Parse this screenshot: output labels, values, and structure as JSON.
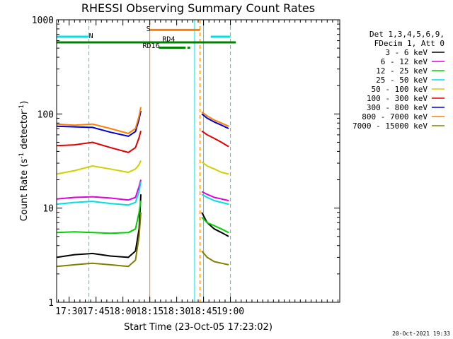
{
  "chart_data": {
    "type": "line",
    "title": "RHESSI Observing Summary Count Rates",
    "xlabel": "Start Time (23-Oct-05 17:23:02)",
    "ylabel_prefix": "Count Rate (s",
    "ylabel_sup1": "-1",
    "ylabel_mid": " detector",
    "ylabel_sup2": "-1",
    "ylabel_suffix": ")",
    "y_scale": "log",
    "ylim": [
      1,
      1000
    ],
    "xlim_minutes": [
      0,
      158
    ],
    "x_ticks": [
      {
        "label": "17:30",
        "minutes": 7
      },
      {
        "label": "17:45",
        "minutes": 22
      },
      {
        "label": "18:00",
        "minutes": 37
      },
      {
        "label": "18:15",
        "minutes": 52
      },
      {
        "label": "18:30",
        "minutes": 67
      },
      {
        "label": "18:45",
        "minutes": 82
      },
      {
        "label": "19:00",
        "minutes": 97
      }
    ],
    "y_ticks": [
      {
        "label": "1",
        "value": 1
      },
      {
        "label": "10",
        "value": 10
      },
      {
        "label": "100",
        "value": 100
      },
      {
        "label": "1000",
        "value": 1000
      }
    ],
    "legend_header": [
      "Det 1,3,4,5,6,9,",
      "FDecim 1, Att 0"
    ],
    "legend_placement": "right",
    "series": [
      {
        "name": "3 - 6 keV",
        "color": "#000000",
        "segments": [
          [
            [
              0,
              3.0
            ],
            [
              10,
              3.2
            ],
            [
              20,
              3.3
            ],
            [
              30,
              3.1
            ],
            [
              40,
              3.0
            ],
            [
              44,
              3.5
            ],
            [
              46,
              6
            ],
            [
              47,
              14
            ]
          ],
          [
            [
              81,
              9
            ],
            [
              84,
              7
            ],
            [
              88,
              6
            ],
            [
              92,
              5.5
            ],
            [
              96,
              5
            ]
          ]
        ]
      },
      {
        "name": "6 - 12 keV",
        "color": "#e000e0",
        "segments": [
          [
            [
              0,
              12.5
            ],
            [
              10,
              13
            ],
            [
              20,
              13.2
            ],
            [
              30,
              12.8
            ],
            [
              40,
              12.2
            ],
            [
              44,
              13
            ],
            [
              46,
              17
            ],
            [
              47,
              20
            ]
          ],
          [
            [
              81,
              15
            ],
            [
              84,
              14
            ],
            [
              88,
              13
            ],
            [
              92,
              12.5
            ],
            [
              96,
              12
            ]
          ]
        ]
      },
      {
        "name": "12 - 25 keV",
        "color": "#00d000",
        "segments": [
          [
            [
              0,
              5.5
            ],
            [
              10,
              5.6
            ],
            [
              20,
              5.5
            ],
            [
              30,
              5.4
            ],
            [
              40,
              5.5
            ],
            [
              44,
              6
            ],
            [
              46,
              9
            ],
            [
              47,
              12
            ]
          ],
          [
            [
              81,
              8
            ],
            [
              84,
              7
            ],
            [
              88,
              6.5
            ],
            [
              92,
              6
            ],
            [
              96,
              5.5
            ]
          ]
        ]
      },
      {
        "name": "25 - 50 keV",
        "color": "#00e0e0",
        "segments": [
          [
            [
              0,
              11
            ],
            [
              10,
              11.5
            ],
            [
              20,
              11.8
            ],
            [
              30,
              11.2
            ],
            [
              40,
              10.8
            ],
            [
              44,
              11.5
            ],
            [
              46,
              15
            ],
            [
              47,
              19
            ]
          ],
          [
            [
              81,
              14
            ],
            [
              84,
              13
            ],
            [
              88,
              12
            ],
            [
              92,
              11.5
            ],
            [
              96,
              11
            ]
          ]
        ]
      },
      {
        "name": "50 - 100 keV",
        "color": "#d0d000",
        "segments": [
          [
            [
              0,
              23
            ],
            [
              10,
              25
            ],
            [
              20,
              28
            ],
            [
              30,
              26
            ],
            [
              40,
              24
            ],
            [
              44,
              26
            ],
            [
              46,
              29
            ],
            [
              47,
              32
            ]
          ],
          [
            [
              81,
              31
            ],
            [
              84,
              28
            ],
            [
              88,
              26
            ],
            [
              92,
              24
            ],
            [
              96,
              23
            ]
          ]
        ]
      },
      {
        "name": "100 - 300 keV",
        "color": "#e00000",
        "segments": [
          [
            [
              0,
              46
            ],
            [
              10,
              47
            ],
            [
              20,
              50
            ],
            [
              30,
              44
            ],
            [
              40,
              39
            ],
            [
              44,
              44
            ],
            [
              46,
              56
            ],
            [
              47,
              66
            ]
          ],
          [
            [
              81,
              66
            ],
            [
              84,
              60
            ],
            [
              88,
              55
            ],
            [
              92,
              50
            ],
            [
              96,
              45
            ]
          ]
        ]
      },
      {
        "name": "300 - 800 keV",
        "color": "#0000d0",
        "segments": [
          [
            [
              0,
              74
            ],
            [
              10,
              73
            ],
            [
              20,
              72
            ],
            [
              30,
              64
            ],
            [
              40,
              58
            ],
            [
              44,
              65
            ],
            [
              46,
              88
            ],
            [
              47,
              108
            ]
          ],
          [
            [
              81,
              100
            ],
            [
              84,
              90
            ],
            [
              88,
              82
            ],
            [
              92,
              76
            ],
            [
              96,
              70
            ]
          ]
        ]
      },
      {
        "name": "800 - 7000 keV",
        "color": "#ff8000",
        "segments": [
          [
            [
              0,
              78
            ],
            [
              10,
              76
            ],
            [
              20,
              78
            ],
            [
              30,
              70
            ],
            [
              40,
              62
            ],
            [
              44,
              70
            ],
            [
              46,
              95
            ],
            [
              47,
              118
            ]
          ],
          [
            [
              81,
              105
            ],
            [
              84,
              95
            ],
            [
              88,
              86
            ],
            [
              92,
              80
            ],
            [
              96,
              74
            ]
          ]
        ]
      },
      {
        "name": "7000 - 15000 keV",
        "color": "#808000",
        "segments": [
          [
            [
              0,
              2.4
            ],
            [
              10,
              2.5
            ],
            [
              20,
              2.6
            ],
            [
              30,
              2.5
            ],
            [
              40,
              2.4
            ],
            [
              44,
              2.8
            ],
            [
              46,
              5
            ],
            [
              47,
              9
            ]
          ],
          [
            [
              81,
              3.5
            ],
            [
              84,
              3
            ],
            [
              88,
              2.7
            ],
            [
              92,
              2.6
            ],
            [
              96,
              2.5
            ]
          ]
        ]
      }
    ],
    "annotations": [
      {
        "text": "N",
        "color": "#00e0e0",
        "minutes": 18,
        "value": 640
      },
      {
        "text": "S",
        "color": "#ff8000",
        "minutes": 50,
        "value": 760
      },
      {
        "text": "RD4",
        "color": "#008000",
        "minutes": 59,
        "value": 590
      },
      {
        "text": "RD16",
        "color": "#008000",
        "minutes": 48,
        "value": 500
      }
    ],
    "flag_bars": [
      {
        "color": "#00e0e0",
        "value": 660,
        "ranges": [
          [
            0,
            18
          ],
          [
            86,
            97
          ]
        ]
      },
      {
        "color": "#ff8000",
        "value": 780,
        "ranges": [
          [
            52,
            80
          ]
        ]
      },
      {
        "color": "#008000",
        "value": 575,
        "ranges": [
          [
            0,
            100
          ]
        ]
      },
      {
        "color": "#008000",
        "value": 505,
        "ranges": [
          [
            57,
            72
          ],
          [
            73,
            74.5
          ]
        ]
      }
    ],
    "vertical_markers": [
      {
        "minutes": 0,
        "color": "#00e0e0",
        "style": "solid"
      },
      {
        "minutes": 18,
        "color": "#00e0e0",
        "style": "dashed"
      },
      {
        "minutes": 52,
        "color": "#ff8000",
        "style": "solid"
      },
      {
        "minutes": 77,
        "color": "#00e0e0",
        "style": "solid"
      },
      {
        "minutes": 80,
        "color": "#ff8000",
        "style": "dashed"
      },
      {
        "minutes": 82,
        "color": "#00e0e0",
        "style": "solid"
      },
      {
        "minutes": 97,
        "color": "#00e0e0",
        "style": "dashed"
      }
    ]
  },
  "footer": {
    "timestamp": "20-Oct-2021 19:33"
  }
}
